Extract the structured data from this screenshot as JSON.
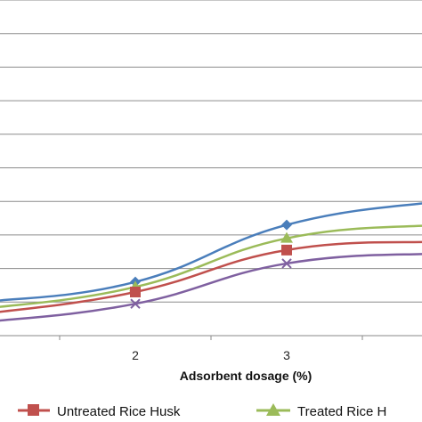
{
  "chart_data": {
    "type": "line",
    "xlabel": "Adsorbent dosage (%)",
    "x_tick_labels": [
      "2",
      "3"
    ],
    "grid": true,
    "legend_placement": "bottom",
    "series": [
      {
        "name": "",
        "color": "#4a7ebb",
        "marker": "diamond",
        "x": [
          1,
          2,
          3,
          4
        ],
        "y": [
          1.0,
          1.6,
          3.3,
          4.0
        ]
      },
      {
        "name": "Treated Rice H",
        "color": "#9bbb59",
        "marker": "triangle",
        "x": [
          1,
          2,
          3,
          4
        ],
        "y": [
          0.8,
          1.45,
          2.9,
          3.3
        ]
      },
      {
        "name": "Untreated Rice Husk",
        "color": "#c0504d",
        "marker": "square",
        "x": [
          1,
          2,
          3,
          4
        ],
        "y": [
          0.65,
          1.3,
          2.55,
          2.8
        ]
      },
      {
        "name": "",
        "color": "#7f60a0",
        "marker": "x",
        "x": [
          1,
          2,
          3,
          4
        ],
        "y": [
          0.4,
          0.95,
          2.15,
          2.45
        ]
      }
    ],
    "ylim": [
      0,
      10
    ],
    "y_gridlines": [
      0,
      1,
      2,
      3,
      4,
      5,
      6,
      7,
      8,
      9,
      10
    ]
  }
}
